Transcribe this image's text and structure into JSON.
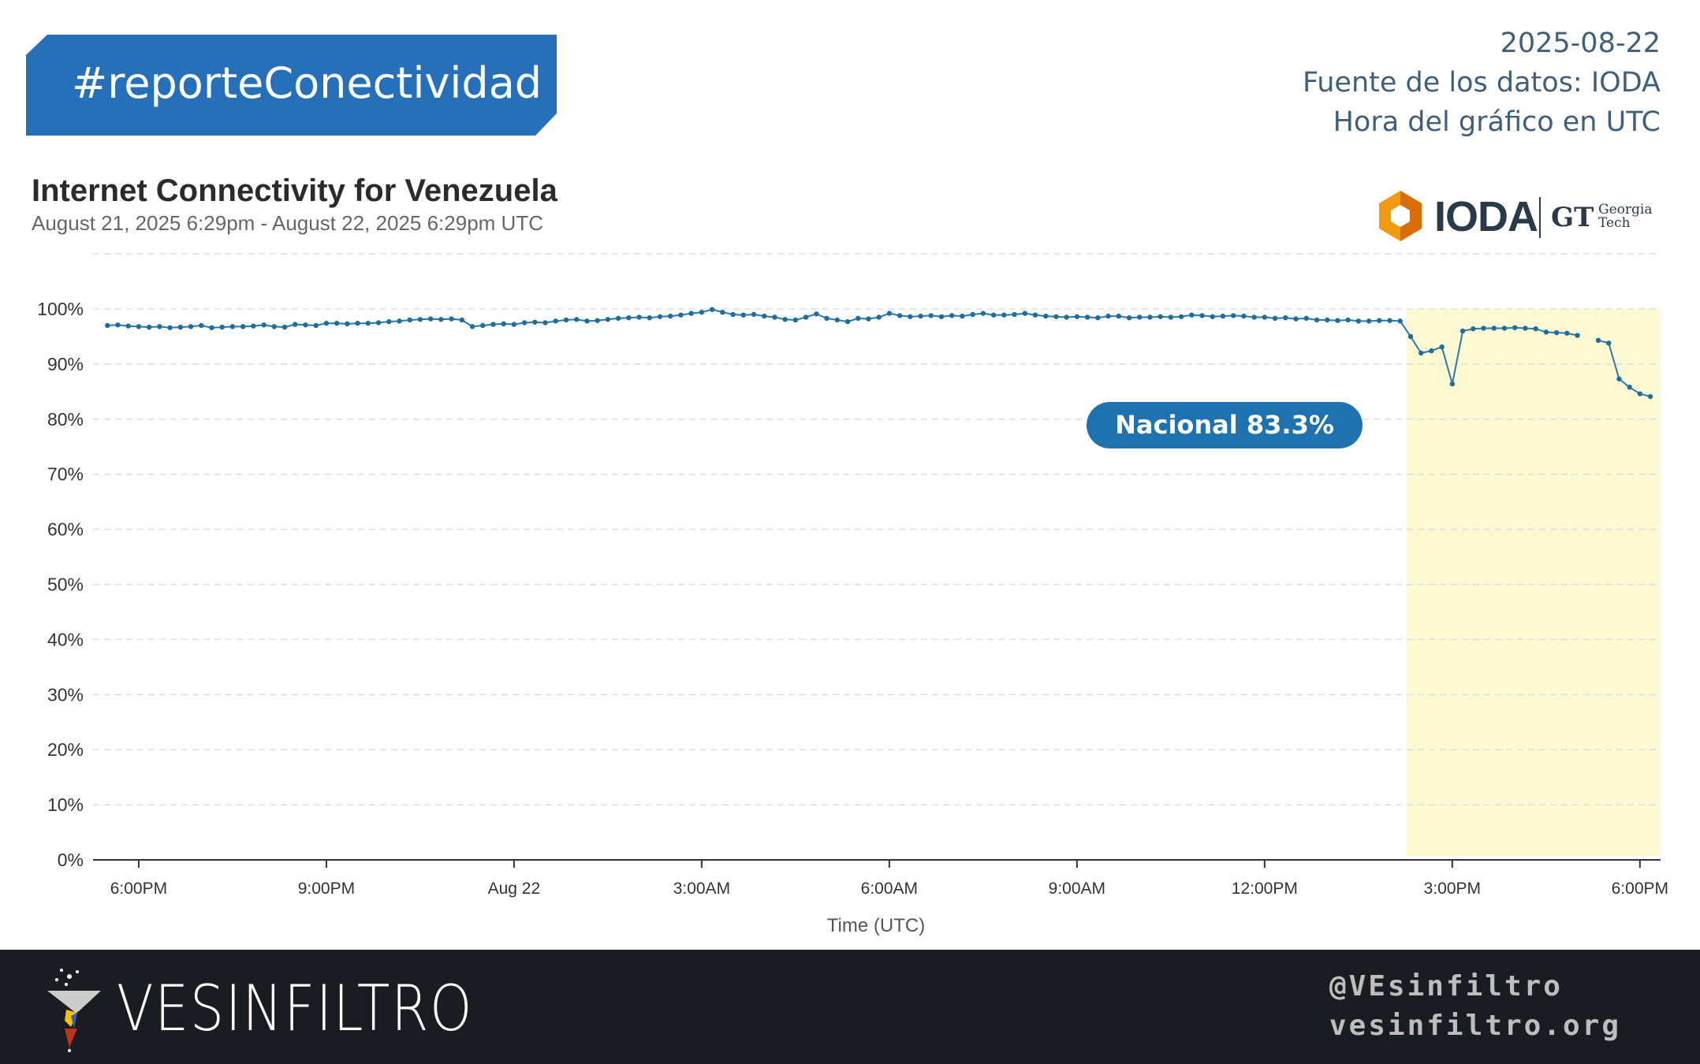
{
  "header": {
    "hashtag": "#reporteConectividad",
    "date": "2025-08-22",
    "source": "Fuente de los datos: IODA",
    "timezone_note": "Hora del gráfico en UTC"
  },
  "logos": {
    "ioda": "IODA",
    "gt_mark": "GT",
    "gt_name_1": "Georgia",
    "gt_name_2": "Tech"
  },
  "annotation": {
    "label": "Nacional 83.3%",
    "color": "#1f72b0"
  },
  "footer": {
    "brand": "VESINFILTRO",
    "handle": "@VEsinfiltro",
    "website": "vesinfiltro.org"
  },
  "chart_data": {
    "type": "line",
    "title": "Internet Connectivity for Venezuela",
    "subtitle": "August 21, 2025 6:29pm - August 22, 2025 6:29pm UTC",
    "xlabel": "Time (UTC)",
    "ylabel": "",
    "x_unit": "hours since Aug 21 00:00 UTC",
    "xlim": [
      17.27,
      42.33
    ],
    "ylim": [
      0,
      100
    ],
    "yticks": [
      0,
      10,
      20,
      30,
      40,
      50,
      60,
      70,
      80,
      90,
      100
    ],
    "ytick_labels": [
      "0%",
      "10%",
      "20%",
      "30%",
      "40%",
      "50%",
      "60%",
      "70%",
      "80%",
      "90%",
      "100%"
    ],
    "xticks": [
      18,
      21,
      24,
      27,
      30,
      33,
      36,
      39,
      42
    ],
    "xtick_labels": [
      "6:00PM",
      "9:00PM",
      "Aug 22",
      "3:00AM",
      "6:00AM",
      "9:00AM",
      "12:00PM",
      "3:00PM",
      "6:00PM"
    ],
    "grid": true,
    "highlight_start": 38.27,
    "highlight_color": "#fdf9d3",
    "series": [
      {
        "name": "Nacional",
        "color": "#2b79a8",
        "x_start": 17.5,
        "x_step": 0.16667,
        "values": [
          97.0,
          97.1,
          96.9,
          96.8,
          96.7,
          96.8,
          96.6,
          96.7,
          96.8,
          97.0,
          96.6,
          96.7,
          96.8,
          96.8,
          96.9,
          97.1,
          96.8,
          96.7,
          97.2,
          97.1,
          97.0,
          97.4,
          97.4,
          97.3,
          97.4,
          97.4,
          97.5,
          97.7,
          97.8,
          98.0,
          98.1,
          98.2,
          98.1,
          98.2,
          98.0,
          96.8,
          97.0,
          97.2,
          97.3,
          97.2,
          97.5,
          97.6,
          97.5,
          97.8,
          98.0,
          98.1,
          97.8,
          97.9,
          98.1,
          98.3,
          98.4,
          98.5,
          98.4,
          98.6,
          98.7,
          98.9,
          99.2,
          99.4,
          99.9,
          99.4,
          99.0,
          98.9,
          99.0,
          98.7,
          98.5,
          98.1,
          98.0,
          98.5,
          99.1,
          98.3,
          98.0,
          97.7,
          98.3,
          98.2,
          98.5,
          99.2,
          98.8,
          98.6,
          98.7,
          98.8,
          98.6,
          98.8,
          98.7,
          99.0,
          99.2,
          98.9,
          98.9,
          99.0,
          99.2,
          98.9,
          98.7,
          98.6,
          98.5,
          98.6,
          98.5,
          98.4,
          98.7,
          98.7,
          98.4,
          98.5,
          98.5,
          98.6,
          98.5,
          98.6,
          98.9,
          98.8,
          98.6,
          98.7,
          98.8,
          98.7,
          98.5,
          98.5,
          98.3,
          98.4,
          98.2,
          98.3,
          98.0,
          98.0,
          97.9,
          98.0,
          97.8,
          97.8,
          97.9,
          97.9,
          97.8,
          95.0,
          92.0,
          92.4,
          93.1,
          86.4,
          96.0,
          96.4,
          96.5,
          96.5,
          96.5,
          96.6,
          96.5,
          96.4,
          95.8,
          95.7,
          95.6,
          95.2,
          null,
          94.3,
          93.8,
          87.3,
          85.8,
          84.6,
          84.1
        ]
      }
    ]
  }
}
